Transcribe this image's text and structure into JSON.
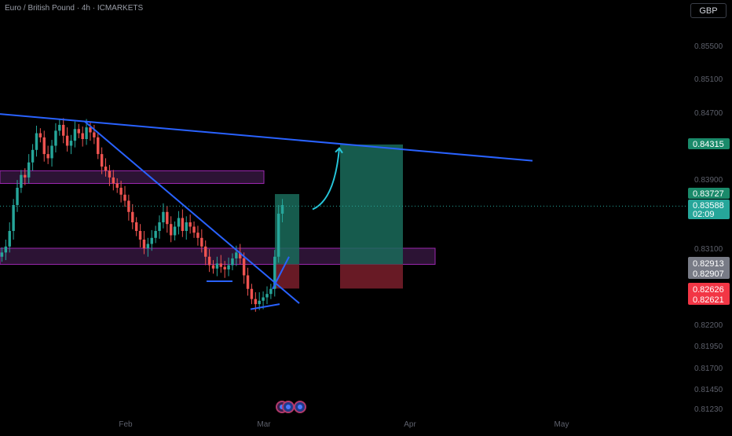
{
  "header": {
    "symbol_title": "Euro / British Pound · 4h · ICMARKETS",
    "currency_button": "GBP"
  },
  "colors": {
    "background": "#000000",
    "trendline": "#2962ff",
    "zone_fill": "#3b1a45",
    "zone_border": "#9c27b0",
    "long_profit": "#1a6b5a",
    "long_loss": "#7a1f2b",
    "arrow": "#26c6da",
    "candle_up": "#26a69a",
    "candle_down": "#ef5350",
    "current_price_bg": "#26a69a",
    "target_bg": "#1a8a6a",
    "stop_bg": "#f23645",
    "entry_bg": "#787b86"
  },
  "chart_data": {
    "type": "candlestick",
    "title": "Euro / British Pound · 4h · ICMARKETS",
    "timeframe": "4h",
    "x_ticks": [
      "Feb",
      "Mar",
      "Apr",
      "May"
    ],
    "y_ticks": [
      "0.85500",
      "0.85100",
      "0.84700",
      "0.83900",
      "0.83100",
      "0.82200",
      "0.81950",
      "0.81700",
      "0.81450",
      "0.81230"
    ],
    "ylim": [
      0.8118,
      0.8585
    ],
    "price_labels": {
      "target": "0.84315",
      "target_zone_top": "0.83727",
      "current_price": "0.83588",
      "countdown": "02:09",
      "entry_upper": "0.82913",
      "entry_lower": "0.82907",
      "stop_upper": "0.82626",
      "stop_lower": "0.82621"
    },
    "candles_approx": {
      "x_start": 0,
      "x_end": 362,
      "closes": [
        0.8305,
        0.8312,
        0.833,
        0.836,
        0.838,
        0.8395,
        0.8392,
        0.841,
        0.8425,
        0.8445,
        0.844,
        0.842,
        0.8415,
        0.843,
        0.8448,
        0.8455,
        0.8442,
        0.843,
        0.8436,
        0.845,
        0.8445,
        0.8438,
        0.8452,
        0.8446,
        0.844,
        0.842,
        0.8405,
        0.84,
        0.8392,
        0.8385,
        0.838,
        0.8372,
        0.8365,
        0.8352,
        0.834,
        0.833,
        0.832,
        0.831,
        0.8315,
        0.8322,
        0.833,
        0.834,
        0.8352,
        0.8338,
        0.8325,
        0.8335,
        0.8345,
        0.833,
        0.834,
        0.8335,
        0.8328,
        0.8322,
        0.8312,
        0.83,
        0.829,
        0.8286,
        0.8292,
        0.8288,
        0.8285,
        0.829,
        0.8298,
        0.8305,
        0.8298,
        0.8278,
        0.8262,
        0.825,
        0.8244,
        0.8248,
        0.8252,
        0.8256,
        0.8262,
        0.83,
        0.835,
        0.836
      ]
    },
    "annotations": [
      {
        "kind": "trendline",
        "name": "upper-descending-trendline",
        "from": [
          0,
          0.8468
        ],
        "to": [
          678,
          0.8412
        ]
      },
      {
        "kind": "trendline",
        "name": "steep-descending-trendline",
        "from": [
          108,
          0.8459
        ],
        "to": [
          381,
          0.8245
        ]
      },
      {
        "kind": "trendline",
        "name": "support-rising-trendline",
        "from": [
          319,
          0.8238
        ],
        "to": [
          356,
          0.8244
        ]
      },
      {
        "kind": "trendline",
        "name": "breakout-rising-trendline",
        "from": [
          347,
          0.8262
        ],
        "to": [
          368,
          0.83
        ]
      },
      {
        "kind": "trendline",
        "name": "range-bottom-line",
        "from": [
          263,
          0.8271
        ],
        "to": [
          296,
          0.8271
        ]
      },
      {
        "kind": "zone",
        "name": "upper-supply-zone",
        "x": [
          0,
          336
        ],
        "y": [
          0.8385,
          0.84
        ]
      },
      {
        "kind": "zone",
        "name": "lower-demand-zone",
        "x": [
          0,
          554
        ],
        "y": [
          0.8291,
          0.831
        ]
      },
      {
        "kind": "position",
        "name": "small-long-position",
        "x": [
          350,
          381
        ],
        "target": 0.83727,
        "entry": 0.8291,
        "stop": 0.82624
      },
      {
        "kind": "position",
        "name": "large-long-position",
        "x": [
          433,
          513
        ],
        "target": 0.84315,
        "entry": 0.8291,
        "stop": 0.82624
      },
      {
        "kind": "arrow",
        "name": "projection-arrow",
        "from": [
          398,
          0.8355
        ],
        "to": [
          432,
          0.8427
        ]
      }
    ]
  }
}
